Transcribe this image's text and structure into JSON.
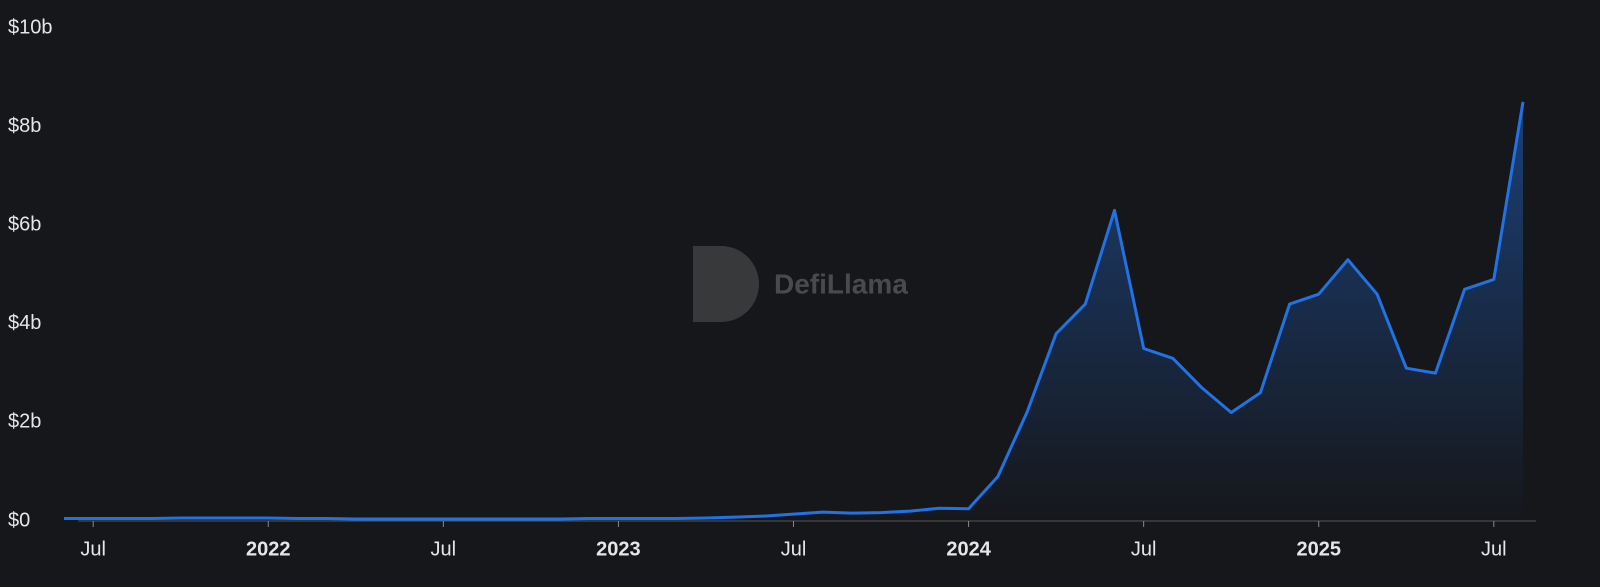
{
  "chart_data": {
    "type": "area",
    "watermark": "DefiLlama",
    "x": [
      "2021-06",
      "2021-07",
      "2021-08",
      "2021-09",
      "2021-10",
      "2021-11",
      "2021-12",
      "2022-01",
      "2022-02",
      "2022-03",
      "2022-04",
      "2022-05",
      "2022-06",
      "2022-07",
      "2022-08",
      "2022-09",
      "2022-10",
      "2022-11",
      "2022-12",
      "2023-01",
      "2023-02",
      "2023-03",
      "2023-04",
      "2023-05",
      "2023-06",
      "2023-07",
      "2023-08",
      "2023-09",
      "2023-10",
      "2023-11",
      "2023-12",
      "2024-01",
      "2024-02",
      "2024-03",
      "2024-04",
      "2024-05",
      "2024-06",
      "2024-07",
      "2024-08",
      "2024-09",
      "2024-10",
      "2024-11",
      "2024-12",
      "2025-01",
      "2025-02",
      "2025-03",
      "2025-04",
      "2025-05",
      "2025-06",
      "2025-07",
      "2025-08"
    ],
    "series": [
      {
        "color": "#2172e5",
        "values": [
          0.05,
          0.05,
          0.05,
          0.05,
          0.06,
          0.06,
          0.06,
          0.06,
          0.05,
          0.05,
          0.04,
          0.04,
          0.04,
          0.04,
          0.04,
          0.04,
          0.04,
          0.04,
          0.05,
          0.05,
          0.05,
          0.05,
          0.06,
          0.08,
          0.1,
          0.14,
          0.18,
          0.16,
          0.17,
          0.2,
          0.26,
          0.25,
          0.9,
          2.2,
          3.8,
          4.4,
          6.3,
          3.5,
          3.3,
          2.7,
          2.2,
          2.6,
          4.4,
          4.6,
          5.3,
          4.6,
          3.1,
          3.0,
          4.7,
          4.9,
          8.5
        ]
      }
    ],
    "xlim": [
      "2021-06",
      "2025-08"
    ],
    "xticks": [
      {
        "value": "2021-07",
        "label": "Jul"
      },
      {
        "value": "2022-01",
        "label": "2022"
      },
      {
        "value": "2022-07",
        "label": "Jul"
      },
      {
        "value": "2023-01",
        "label": "2023"
      },
      {
        "value": "2023-07",
        "label": "Jul"
      },
      {
        "value": "2024-01",
        "label": "2024"
      },
      {
        "value": "2024-07",
        "label": "Jul"
      },
      {
        "value": "2025-01",
        "label": "2025"
      },
      {
        "value": "2025-07",
        "label": "Jul"
      }
    ],
    "ylim": [
      0,
      10
    ],
    "yticks": [
      {
        "value": 0,
        "label": "$0"
      },
      {
        "value": 2,
        "label": "$2b"
      },
      {
        "value": 4,
        "label": "$4b"
      },
      {
        "value": 6,
        "label": "$6b"
      },
      {
        "value": 8,
        "label": "$8b"
      },
      {
        "value": 10,
        "label": "$10b"
      }
    ]
  }
}
